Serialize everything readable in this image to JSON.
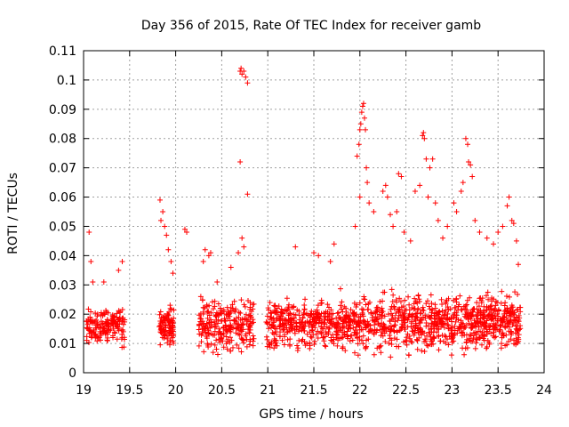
{
  "chart_data": {
    "type": "scatter",
    "title": "Day 356 of 2015, Rate Of TEC Index for receiver gamb",
    "xlabel": "GPS time / hours",
    "ylabel": "ROTI / TECUs",
    "xlim": [
      19,
      24
    ],
    "ylim": [
      0,
      0.11
    ],
    "grid": true,
    "marker": "plus",
    "color": "#ff0000",
    "x_ticks": [
      "19",
      "19.5",
      "20",
      "20.5",
      "21",
      "21.5",
      "22",
      "22.5",
      "23",
      "23.5",
      "24"
    ],
    "y_ticks": [
      "0",
      "0.01",
      "0.02",
      "0.03",
      "0.04",
      "0.05",
      "0.06",
      "0.07",
      "0.08",
      "0.09",
      "0.1",
      "0.11"
    ],
    "series": [
      {
        "name": "ROTI",
        "clusters": [
          {
            "t_start": 19.03,
            "t_end": 19.45,
            "n": 170,
            "low": 0.007,
            "high": 0.024
          },
          {
            "t_start": 19.82,
            "t_end": 19.98,
            "n": 90,
            "low": 0.007,
            "high": 0.025
          },
          {
            "t_start": 20.25,
            "t_end": 20.85,
            "n": 260,
            "low": 0.005,
            "high": 0.028
          },
          {
            "t_start": 20.98,
            "t_end": 21.75,
            "n": 320,
            "low": 0.005,
            "high": 0.028
          },
          {
            "t_start": 21.75,
            "t_end": 22.6,
            "n": 360,
            "low": 0.004,
            "high": 0.03
          },
          {
            "t_start": 22.6,
            "t_end": 23.25,
            "n": 300,
            "low": 0.004,
            "high": 0.03
          },
          {
            "t_start": 23.25,
            "t_end": 23.75,
            "n": 260,
            "low": 0.005,
            "high": 0.03
          }
        ],
        "peaks": [
          {
            "x": 19.06,
            "y": 0.048
          },
          {
            "x": 19.08,
            "y": 0.038
          },
          {
            "x": 19.1,
            "y": 0.031
          },
          {
            "x": 19.22,
            "y": 0.031
          },
          {
            "x": 19.38,
            "y": 0.035
          },
          {
            "x": 19.42,
            "y": 0.038
          },
          {
            "x": 19.83,
            "y": 0.059
          },
          {
            "x": 19.84,
            "y": 0.052
          },
          {
            "x": 19.86,
            "y": 0.055
          },
          {
            "x": 19.88,
            "y": 0.05
          },
          {
            "x": 19.9,
            "y": 0.047
          },
          {
            "x": 19.92,
            "y": 0.042
          },
          {
            "x": 19.95,
            "y": 0.038
          },
          {
            "x": 19.97,
            "y": 0.034
          },
          {
            "x": 20.1,
            "y": 0.049
          },
          {
            "x": 20.12,
            "y": 0.048
          },
          {
            "x": 20.3,
            "y": 0.038
          },
          {
            "x": 20.32,
            "y": 0.042
          },
          {
            "x": 20.36,
            "y": 0.04
          },
          {
            "x": 20.38,
            "y": 0.041
          },
          {
            "x": 20.45,
            "y": 0.031
          },
          {
            "x": 20.6,
            "y": 0.036
          },
          {
            "x": 20.7,
            "y": 0.103
          },
          {
            "x": 20.71,
            "y": 0.104
          },
          {
            "x": 20.72,
            "y": 0.102
          },
          {
            "x": 20.74,
            "y": 0.103
          },
          {
            "x": 20.76,
            "y": 0.101
          },
          {
            "x": 20.78,
            "y": 0.099
          },
          {
            "x": 20.7,
            "y": 0.072
          },
          {
            "x": 20.78,
            "y": 0.061
          },
          {
            "x": 20.72,
            "y": 0.046
          },
          {
            "x": 20.74,
            "y": 0.043
          },
          {
            "x": 20.68,
            "y": 0.041
          },
          {
            "x": 21.3,
            "y": 0.043
          },
          {
            "x": 21.5,
            "y": 0.041
          },
          {
            "x": 21.55,
            "y": 0.04
          },
          {
            "x": 21.68,
            "y": 0.038
          },
          {
            "x": 21.72,
            "y": 0.044
          },
          {
            "x": 21.97,
            "y": 0.074
          },
          {
            "x": 21.99,
            "y": 0.078
          },
          {
            "x": 22.0,
            "y": 0.083
          },
          {
            "x": 22.01,
            "y": 0.085
          },
          {
            "x": 22.02,
            "y": 0.089
          },
          {
            "x": 22.03,
            "y": 0.091
          },
          {
            "x": 22.04,
            "y": 0.092
          },
          {
            "x": 22.05,
            "y": 0.087
          },
          {
            "x": 22.06,
            "y": 0.083
          },
          {
            "x": 22.07,
            "y": 0.07
          },
          {
            "x": 22.0,
            "y": 0.06
          },
          {
            "x": 21.95,
            "y": 0.05
          },
          {
            "x": 22.08,
            "y": 0.065
          },
          {
            "x": 22.1,
            "y": 0.058
          },
          {
            "x": 22.15,
            "y": 0.055
          },
          {
            "x": 22.25,
            "y": 0.062
          },
          {
            "x": 22.28,
            "y": 0.064
          },
          {
            "x": 22.3,
            "y": 0.06
          },
          {
            "x": 22.33,
            "y": 0.054
          },
          {
            "x": 22.36,
            "y": 0.05
          },
          {
            "x": 22.4,
            "y": 0.055
          },
          {
            "x": 22.42,
            "y": 0.068
          },
          {
            "x": 22.45,
            "y": 0.067
          },
          {
            "x": 22.48,
            "y": 0.048
          },
          {
            "x": 22.55,
            "y": 0.045
          },
          {
            "x": 22.6,
            "y": 0.062
          },
          {
            "x": 22.65,
            "y": 0.064
          },
          {
            "x": 22.68,
            "y": 0.081
          },
          {
            "x": 22.69,
            "y": 0.082
          },
          {
            "x": 22.7,
            "y": 0.08
          },
          {
            "x": 22.72,
            "y": 0.073
          },
          {
            "x": 22.76,
            "y": 0.07
          },
          {
            "x": 22.79,
            "y": 0.073
          },
          {
            "x": 22.74,
            "y": 0.06
          },
          {
            "x": 22.82,
            "y": 0.058
          },
          {
            "x": 22.85,
            "y": 0.052
          },
          {
            "x": 22.9,
            "y": 0.046
          },
          {
            "x": 22.95,
            "y": 0.05
          },
          {
            "x": 23.02,
            "y": 0.058
          },
          {
            "x": 23.05,
            "y": 0.055
          },
          {
            "x": 23.1,
            "y": 0.062
          },
          {
            "x": 23.12,
            "y": 0.065
          },
          {
            "x": 23.15,
            "y": 0.08
          },
          {
            "x": 23.17,
            "y": 0.078
          },
          {
            "x": 23.18,
            "y": 0.072
          },
          {
            "x": 23.2,
            "y": 0.071
          },
          {
            "x": 23.22,
            "y": 0.067
          },
          {
            "x": 23.25,
            "y": 0.052
          },
          {
            "x": 23.3,
            "y": 0.048
          },
          {
            "x": 23.38,
            "y": 0.046
          },
          {
            "x": 23.45,
            "y": 0.044
          },
          {
            "x": 23.5,
            "y": 0.048
          },
          {
            "x": 23.55,
            "y": 0.05
          },
          {
            "x": 23.6,
            "y": 0.057
          },
          {
            "x": 23.62,
            "y": 0.06
          },
          {
            "x": 23.65,
            "y": 0.052
          },
          {
            "x": 23.67,
            "y": 0.051
          },
          {
            "x": 23.7,
            "y": 0.045
          },
          {
            "x": 23.72,
            "y": 0.037
          }
        ]
      }
    ]
  }
}
